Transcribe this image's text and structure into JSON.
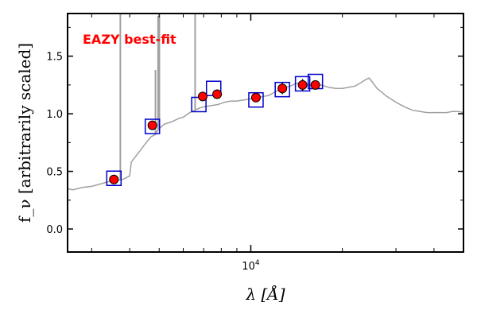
{
  "chart_data": {
    "type": "scatter",
    "title": "",
    "annotation": "EAZY best-fit",
    "xlabel": "λ [Å]",
    "ylabel": "f_ν [arbitrarily scaled]",
    "x_scale": "log",
    "xlim": [
      2500,
      50000
    ],
    "ylim": [
      -0.2,
      1.87
    ],
    "x_ticks": [
      {
        "value": 10000,
        "label": "10^4"
      }
    ],
    "y_ticks": [
      {
        "value": 0.0,
        "label": "0.0"
      },
      {
        "value": 0.5,
        "label": "0.5"
      },
      {
        "value": 1.0,
        "label": "1.0"
      },
      {
        "value": 1.5,
        "label": "1.5"
      }
    ],
    "grid": false,
    "colors": {
      "template": "#a0a0a0",
      "observed": "#ff0000",
      "model": "#0000cc",
      "annotation": "#ff0000"
    },
    "series": [
      {
        "name": "",
        "role": "template",
        "style": "line",
        "x": [
          2500,
          2600,
          2800,
          3000,
          3200,
          3400,
          3600,
          3800,
          4000,
          4050,
          4100,
          4300,
          4500,
          4700,
          4860,
          4900,
          5000,
          5200,
          5500,
          5800,
          6000,
          6300,
          6560,
          6800,
          7000,
          7400,
          7800,
          8200,
          8600,
          9000,
          9500,
          10000,
          10500,
          11000,
          11500,
          12000,
          12500,
          13000,
          13500,
          14000,
          14500,
          15000,
          16000,
          17000,
          18000,
          19000,
          20000,
          21000,
          22000,
          23000,
          24000,
          24500,
          25000,
          26000,
          28000,
          30000,
          32000,
          34000,
          36000,
          38000,
          40000,
          42000,
          44000,
          46000,
          48000,
          50000
        ],
        "y": [
          0.35,
          0.34,
          0.36,
          0.37,
          0.39,
          0.41,
          0.42,
          0.43,
          0.46,
          0.58,
          0.6,
          0.67,
          0.74,
          0.8,
          0.82,
          0.84,
          0.87,
          0.91,
          0.93,
          0.96,
          0.97,
          1.01,
          1.03,
          1.05,
          1.06,
          1.07,
          1.08,
          1.1,
          1.11,
          1.11,
          1.12,
          1.13,
          1.14,
          1.15,
          1.16,
          1.19,
          1.21,
          1.23,
          1.24,
          1.26,
          1.27,
          1.26,
          1.24,
          1.25,
          1.23,
          1.22,
          1.22,
          1.23,
          1.24,
          1.27,
          1.3,
          1.31,
          1.28,
          1.22,
          1.15,
          1.1,
          1.06,
          1.03,
          1.02,
          1.01,
          1.01,
          1.01,
          1.01,
          1.02,
          1.02,
          1.01
        ]
      },
      {
        "name": "",
        "role": "emission-lines",
        "style": "spikes",
        "x": [
          3727,
          4861,
          4959,
          5007,
          6563
        ],
        "y": [
          2.0,
          1.38,
          1.85,
          2.0,
          2.0
        ]
      },
      {
        "name": "",
        "role": "model",
        "style": "open-square",
        "x": [
          3550,
          4750,
          6750,
          7550,
          10400,
          12700,
          14800,
          16300
        ],
        "y": [
          0.44,
          0.89,
          1.08,
          1.22,
          1.12,
          1.21,
          1.26,
          1.28
        ]
      },
      {
        "name": "",
        "role": "observed",
        "style": "filled-circle",
        "x": [
          3550,
          4750,
          6950,
          7750,
          10400,
          12700,
          14800,
          16300
        ],
        "y": [
          0.43,
          0.9,
          1.15,
          1.17,
          1.14,
          1.22,
          1.25,
          1.25
        ],
        "yerr": [
          0.01,
          0.01,
          0.02,
          0.03,
          0.04,
          0.05,
          0.05,
          0.03
        ]
      }
    ]
  }
}
